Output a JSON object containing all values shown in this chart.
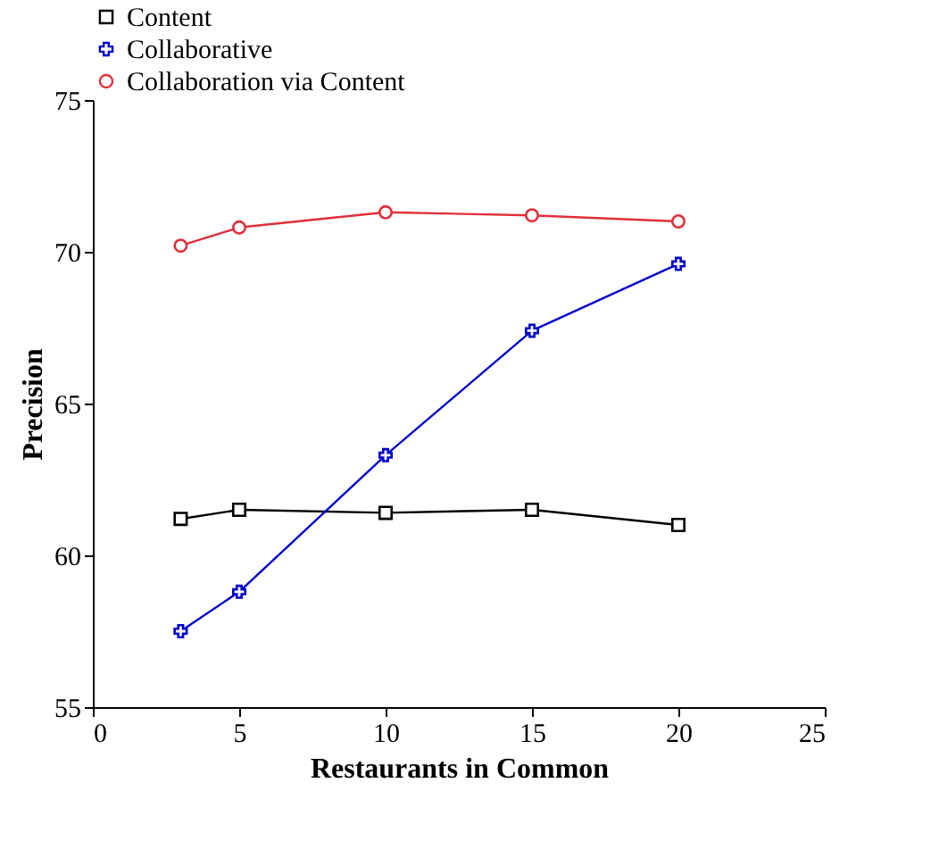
{
  "chart_data": {
    "type": "line",
    "xlabel": "Restaurants in Common",
    "ylabel": "Precision",
    "x": [
      3,
      5,
      10,
      15,
      20
    ],
    "series": [
      {
        "name": "Content",
        "color": "#000000",
        "marker": "square",
        "values": [
          61.2,
          61.5,
          61.4,
          61.5,
          61.0
        ]
      },
      {
        "name": "Collaborative",
        "color": "#0000cc",
        "marker": "cross",
        "values": [
          57.5,
          58.8,
          63.3,
          67.4,
          69.6
        ]
      },
      {
        "name": "Collaboration via Content",
        "color": "#e0303a",
        "marker": "circle",
        "values": [
          70.2,
          70.8,
          71.3,
          71.2,
          71.0
        ]
      }
    ],
    "xlim": [
      0,
      25
    ],
    "xticks": [
      0,
      5,
      10,
      15,
      20,
      25
    ],
    "ylim": [
      55,
      75
    ],
    "yticks": [
      55,
      60,
      65,
      70,
      75
    ],
    "grid": false,
    "legend": "top"
  }
}
